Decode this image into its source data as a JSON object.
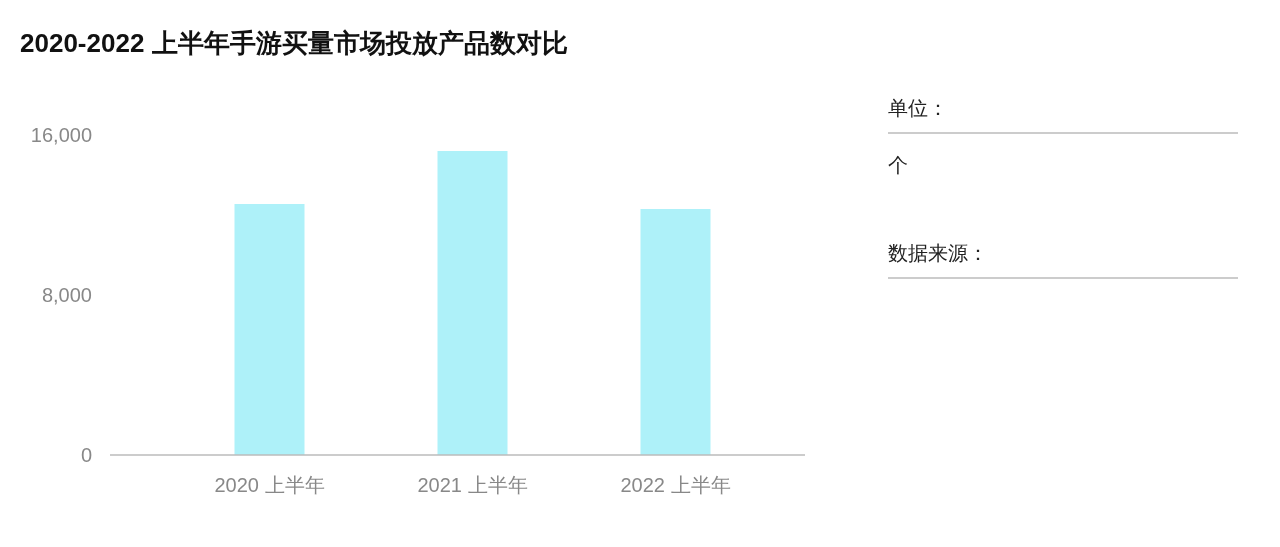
{
  "chart_data": {
    "type": "bar",
    "title": "2020-2022 上半年手游买量市场投放产品数对比",
    "categories": [
      "2020 上半年",
      "2021 上半年",
      "2022 上半年"
    ],
    "values": [
      12550,
      15200,
      12300
    ],
    "color": "#aef1f9",
    "ylim": [
      0,
      16000
    ],
    "yticks": [
      0,
      {
        "value": 8000,
        "label": "8,000"
      },
      {
        "value": 16000,
        "label": "16,000"
      }
    ],
    "grid": false,
    "annotations": [
      "单位：",
      "个",
      "数据来源："
    ]
  }
}
